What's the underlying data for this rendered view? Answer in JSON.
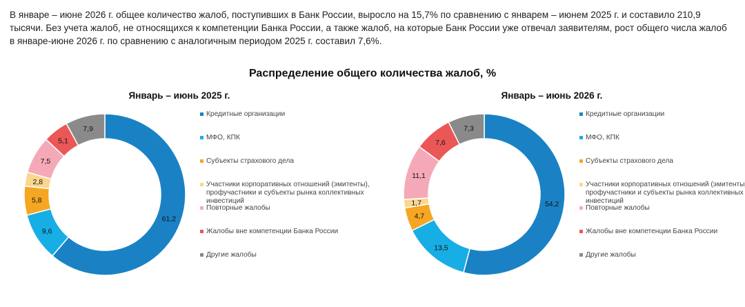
{
  "intro": "В январе – июне 2026 г. общее количество жалоб, поступивших в Банк России, выросло на 15,7% по сравнению с январем – июнем 2025 г. и составило 210,9 тысячи. Без учета жалоб, не относящихся к компетенции Банка России, а также жалоб, на которые Банк России уже отвечал заявителям, рост общего числа жалоб в январе-июне 2026 г. по сравнению с аналогичным периодом 2025 г. составил 7,6%.",
  "title": "Распределение общего количества жалоб, %",
  "colors": [
    "#1a82c4",
    "#17aee6",
    "#f5a623",
    "#fad78c",
    "#f5a9b8",
    "#eb5757",
    "#8a8a8a"
  ],
  "chart_data": [
    {
      "type": "pie",
      "title": "Январь – июнь 2025 г.",
      "categories": [
        "Кредитные организации",
        "МФО, КПК",
        "Субъекты страхового дела",
        "Участники корпоративных отношений (эмитенты), профучастники и субъекты рынка коллективных инвестиций",
        "Повторные жалобы",
        "Жалобы вне компетенции Банка России",
        "Другие жалобы"
      ],
      "values": [
        61.2,
        9.6,
        5.8,
        2.8,
        7.5,
        5.1,
        7.9
      ],
      "value_labels": [
        "61,2",
        "9,6",
        "5,8",
        "2,8",
        "7,5",
        "5,1",
        "7,9"
      ],
      "legend": "right"
    },
    {
      "type": "pie",
      "title": "Январь – июнь 2026 г.",
      "categories": [
        "Кредитные организации",
        "МФО, КПК",
        "Субъекты страхового дела",
        "Участники корпоративных отношений (эмитенты), профучастники и субъекты рынка коллективных инвестиций",
        "Повторные жалобы",
        "Жалобы вне компетенции Банка России",
        "Другие жалобы"
      ],
      "values": [
        54.2,
        13.5,
        4.7,
        1.7,
        11.1,
        7.6,
        7.3
      ],
      "value_labels": [
        "54,2",
        "13,5",
        "4,7",
        "1,7",
        "11,1",
        "7,6",
        "7,3"
      ],
      "legend": "right"
    }
  ]
}
